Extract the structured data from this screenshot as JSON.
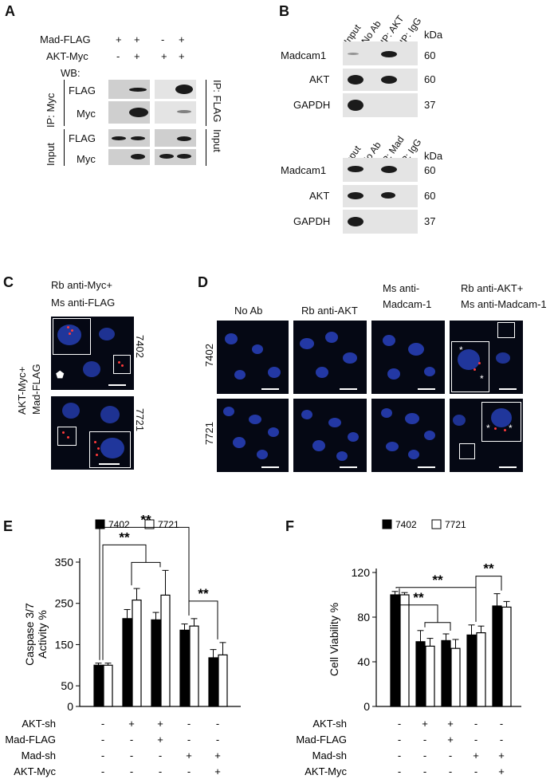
{
  "panelA": {
    "label": "A",
    "rows": [
      "Mad-FLAG",
      "AKT-Myc",
      "WB:"
    ],
    "signs_mad": [
      "+",
      "+",
      "-",
      "+"
    ],
    "signs_akt": [
      "-",
      "+",
      "+",
      "+"
    ],
    "left_blots": [
      "FLAG",
      "Myc",
      "FLAG",
      "Myc"
    ],
    "ip_myc": "IP: Myc",
    "ip_flag": "IP: FLAG",
    "input_left": "Input",
    "input_right": "Input"
  },
  "panelB": {
    "label": "B",
    "top_cols": [
      "Input",
      "No Ab",
      "IP: AKT",
      "IP: IgG"
    ],
    "bottom_cols": [
      "Input",
      "No Ab",
      "IP: Mad",
      "IP: IgG"
    ],
    "kda": "kDa",
    "rows": [
      {
        "name": "Madcam1",
        "kda": "60"
      },
      {
        "name": "AKT",
        "kda": "60"
      },
      {
        "name": "GAPDH",
        "kda": "37"
      }
    ]
  },
  "panelC": {
    "label": "C",
    "title1": "Rb anti-Myc+",
    "title2": "Ms anti-FLAG",
    "side1": "AKT-Myc+",
    "side2": "Mad-FLAG",
    "cell_top": "7402",
    "cell_bottom": "7721"
  },
  "panelD": {
    "label": "D",
    "cols": [
      "No Ab",
      "Rb anti-AKT",
      "Ms anti-",
      "Madcam-1",
      "Rb anti-AKT+",
      "Ms anti-Madcam-1"
    ],
    "row_top": "7402",
    "row_bottom": "7721",
    "star": "*"
  },
  "sig": "**",
  "treatments": {
    "labels": [
      "AKT-sh",
      "Mad-FLAG",
      "Mad-sh",
      "AKT-Myc"
    ],
    "matrix": [
      [
        "-",
        "+",
        "+",
        "-",
        "-"
      ],
      [
        "-",
        "-",
        "+",
        "-",
        "-"
      ],
      [
        "-",
        "-",
        "-",
        "+",
        "+"
      ],
      [
        "-",
        "-",
        "-",
        "-",
        "+"
      ]
    ]
  },
  "chart_data": [
    {
      "panel": "E",
      "type": "bar",
      "ylabel": "Caspase 3/7 Activity %",
      "ylim": [
        0,
        350
      ],
      "yticks": [
        0,
        50,
        150,
        250,
        350
      ],
      "legend_placement": "top",
      "series": [
        {
          "name": "7402",
          "color": "#000000",
          "values": [
            100,
            213,
            210,
            185,
            118
          ],
          "errors": [
            5,
            22,
            18,
            15,
            20
          ]
        },
        {
          "name": "7721",
          "color": "#ffffff",
          "values": [
            100,
            258,
            270,
            195,
            125
          ],
          "errors": [
            5,
            28,
            60,
            18,
            30
          ]
        }
      ]
    },
    {
      "panel": "F",
      "type": "bar",
      "ylabel": "Cell Viability %",
      "ylim": [
        0,
        120
      ],
      "yticks": [
        0,
        40,
        80,
        120
      ],
      "legend_placement": "top",
      "series": [
        {
          "name": "7402",
          "color": "#000000",
          "values": [
            100,
            58,
            59,
            64,
            90
          ],
          "errors": [
            3,
            10,
            6,
            9,
            11
          ]
        },
        {
          "name": "7721",
          "color": "#ffffff",
          "values": [
            100,
            54,
            52,
            66,
            89
          ],
          "errors": [
            2,
            7,
            8,
            6,
            5
          ]
        }
      ]
    }
  ]
}
